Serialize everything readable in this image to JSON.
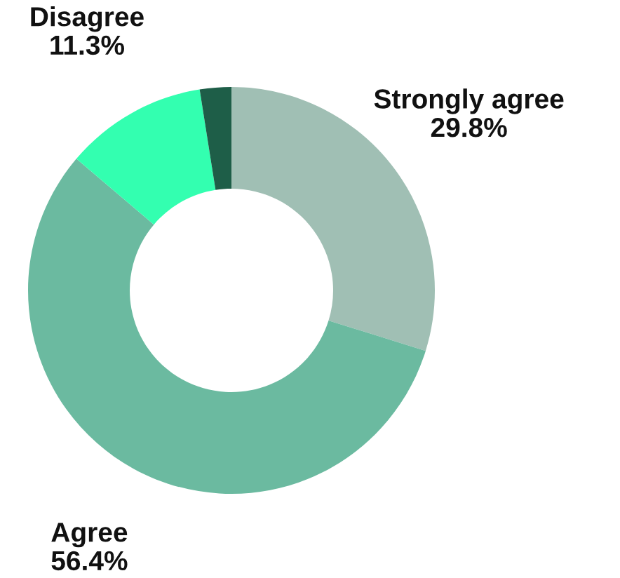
{
  "chart_data": {
    "type": "donut",
    "categories": [
      "Strongly agree",
      "Agree",
      "Disagree",
      null
    ],
    "values": [
      29.8,
      56.4,
      11.3,
      2.5
    ],
    "colors": [
      "#a0bfb4",
      "#6bbaa0",
      "#33ffb0",
      "#1e5e48"
    ],
    "value_labels": [
      "29.8%",
      "56.4%",
      "11.3%",
      null
    ]
  }
}
